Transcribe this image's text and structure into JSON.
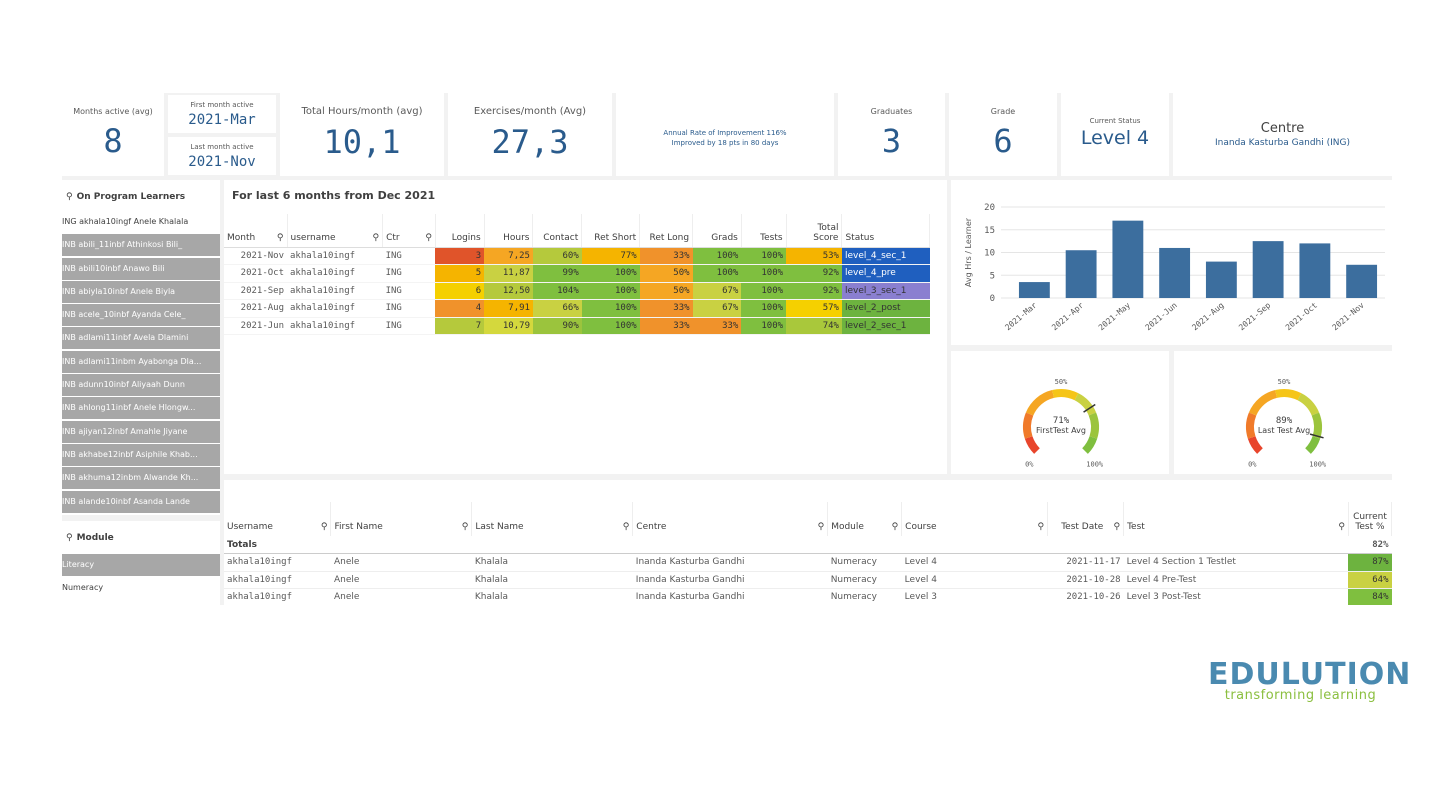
{
  "kpis": {
    "months_active": {
      "label": "Months active (avg)",
      "value": "8"
    },
    "first_month": {
      "label": "First month active",
      "value": "2021-Mar"
    },
    "last_month": {
      "label": "Last month active",
      "value": "2021-Nov"
    },
    "total_hours": {
      "label": "Total Hours/month (avg)",
      "value": "10,1"
    },
    "exercises": {
      "label": "Exercises/month (Avg)",
      "value": "27,3"
    },
    "improvement": {
      "line1": "Annual Rate of Improvement 116%",
      "line2": "Improved by 18 pts in 80 days"
    },
    "graduates": {
      "label": "Graduates",
      "value": "3"
    },
    "grade": {
      "label": "Grade",
      "value": "6"
    },
    "status": {
      "label": "Current Status",
      "value": "Level 4"
    },
    "centre": {
      "label": "Centre",
      "value": "Inanda Kasturba Gandhi (ING)"
    }
  },
  "learners": {
    "title": "On Program Learners",
    "items": [
      {
        "label": "ING akhala10ingf Anele Khalala",
        "selected": false
      },
      {
        "label": "INB abili_11inbf Athinkosi Bili_",
        "selected": true
      },
      {
        "label": "INB abili10inbf Anawo Bili",
        "selected": true
      },
      {
        "label": "INB abiyla10inbf Anele Biyla",
        "selected": true
      },
      {
        "label": "INB acele_10inbf Ayanda Cele_",
        "selected": true
      },
      {
        "label": "INB adlami11inbf Avela Dlamini",
        "selected": true
      },
      {
        "label": "INB adlami11inbm Ayabonga Dla...",
        "selected": true
      },
      {
        "label": "INB adunn10inbf Aliyaah Dunn",
        "selected": true
      },
      {
        "label": "INB ahlong11inbf Anele Hlongw...",
        "selected": true
      },
      {
        "label": "INB ajiyan12inbf Amahle Jiyane",
        "selected": true
      },
      {
        "label": "INB akhabe12inbf Asiphile Khab...",
        "selected": true
      },
      {
        "label": "INB akhuma12inbm Alwande Kh...",
        "selected": true
      },
      {
        "label": "INB alande10inbf Asanda Lande",
        "selected": true
      }
    ]
  },
  "module": {
    "title": "Module",
    "items": [
      {
        "label": "Literacy",
        "selected": true
      },
      {
        "label": "Numeracy",
        "selected": false
      }
    ]
  },
  "monthly": {
    "title": "For last 6 months from Dec 2021",
    "headers": [
      "Month",
      "username",
      "Ctr",
      "Logins",
      "Hours",
      "Contact",
      "Ret Short",
      "Ret Long",
      "Grads",
      "Tests",
      "Total Score",
      "Status"
    ],
    "rows": [
      {
        "month": "2021-Nov",
        "username": "akhala10ingf",
        "ctr": "ING",
        "logins": "3",
        "hours": "7,25",
        "contact": "60%",
        "ret_short": "77%",
        "ret_long": "33%",
        "grads": "100%",
        "tests": "100%",
        "total": "53%",
        "status": "level_4_sec_1",
        "colors": {
          "logins": "#e0542a",
          "hours": "#f5a623",
          "contact": "#b5c93c",
          "ret_short": "#f5b400",
          "ret_long": "#f0922b",
          "grads": "#7fbf3f",
          "tests": "#7fbf3f",
          "total": "#f5b400",
          "status": "#1f5fbf"
        }
      },
      {
        "month": "2021-Oct",
        "username": "akhala10ingf",
        "ctr": "ING",
        "logins": "5",
        "hours": "11,87",
        "contact": "99%",
        "ret_short": "100%",
        "ret_long": "50%",
        "grads": "100%",
        "tests": "100%",
        "total": "92%",
        "status": "level_4_pre",
        "colors": {
          "logins": "#f5b400",
          "hours": "#c9d142",
          "contact": "#7fbf3f",
          "ret_short": "#7fbf3f",
          "ret_long": "#f5a623",
          "grads": "#7fbf3f",
          "tests": "#7fbf3f",
          "total": "#7fbf3f",
          "status": "#1f5fbf"
        }
      },
      {
        "month": "2021-Sep",
        "username": "akhala10ingf",
        "ctr": "ING",
        "logins": "6",
        "hours": "12,50",
        "contact": "104%",
        "ret_short": "100%",
        "ret_long": "50%",
        "grads": "67%",
        "tests": "100%",
        "total": "92%",
        "status": "level_3_sec_1",
        "colors": {
          "logins": "#f5d000",
          "hours": "#b5c93c",
          "contact": "#7fbf3f",
          "ret_short": "#7fbf3f",
          "ret_long": "#f5a623",
          "grads": "#c9d142",
          "tests": "#7fbf3f",
          "total": "#7fbf3f",
          "status": "#8a7fd0"
        }
      },
      {
        "month": "2021-Aug",
        "username": "akhala10ingf",
        "ctr": "ING",
        "logins": "4",
        "hours": "7,91",
        "contact": "66%",
        "ret_short": "100%",
        "ret_long": "33%",
        "grads": "67%",
        "tests": "100%",
        "total": "57%",
        "status": "level_2_post",
        "colors": {
          "logins": "#f0922b",
          "hours": "#f5b400",
          "contact": "#c9d142",
          "ret_short": "#7fbf3f",
          "ret_long": "#f0922b",
          "grads": "#c9d142",
          "tests": "#7fbf3f",
          "total": "#f5d000",
          "status": "#6db33f"
        }
      },
      {
        "month": "2021-Jun",
        "username": "akhala10ingf",
        "ctr": "ING",
        "logins": "7",
        "hours": "10,79",
        "contact": "90%",
        "ret_short": "100%",
        "ret_long": "33%",
        "grads": "33%",
        "tests": "100%",
        "total": "74%",
        "status": "level_2_sec_1",
        "colors": {
          "logins": "#b5c93c",
          "hours": "#d4d83d",
          "contact": "#9bc43d",
          "ret_short": "#7fbf3f",
          "ret_long": "#f0922b",
          "grads": "#f0922b",
          "tests": "#7fbf3f",
          "total": "#a9c83b",
          "status": "#6db33f"
        }
      }
    ]
  },
  "chart_data": [
    {
      "type": "bar",
      "title": "",
      "xlabel": "",
      "ylabel": "Avg Hrs / Learner",
      "categories": [
        "2021-Mar",
        "2021-Apr",
        "2021-May",
        "2021-Jun",
        "2021-Aug",
        "2021-Sep",
        "2021-Oct",
        "2021-Nov"
      ],
      "values": [
        3.5,
        10.5,
        17,
        11,
        8,
        12.5,
        12,
        7.3
      ],
      "ylim": [
        0,
        20
      ],
      "yticks": [
        0,
        5,
        10,
        15,
        20
      ],
      "color": "#3c6e9e"
    },
    {
      "type": "gauge",
      "label": "FirstTest Avg",
      "value": 71,
      "value_label": "71%",
      "min_label": "0%",
      "mid_label": "50%",
      "max_label": "100%"
    },
    {
      "type": "gauge",
      "label": "Last Test Avg",
      "value": 89,
      "value_label": "89%",
      "min_label": "0%",
      "mid_label": "50%",
      "max_label": "100%"
    }
  ],
  "tests": {
    "headers": [
      "Username",
      "First Name",
      "Last Name",
      "Centre",
      "Module",
      "Course",
      "Test Date",
      "Test",
      "Current Test %"
    ],
    "totals_label": "Totals",
    "totals_value": "82%",
    "rows": [
      {
        "username": "akhala10ingf",
        "first": "Anele",
        "last": "Khalala",
        "centre": "Inanda Kasturba Gandhi",
        "module": "Numeracy",
        "course": "Level 4",
        "date": "2021-11-17",
        "test": "Level 4 Section 1 Testlet",
        "pct": "87%",
        "color": "#6db33f"
      },
      {
        "username": "akhala10ingf",
        "first": "Anele",
        "last": "Khalala",
        "centre": "Inanda Kasturba Gandhi",
        "module": "Numeracy",
        "course": "Level 4",
        "date": "2021-10-28",
        "test": "Level 4 Pre-Test",
        "pct": "64%",
        "color": "#c9d142"
      },
      {
        "username": "akhala10ingf",
        "first": "Anele",
        "last": "Khalala",
        "centre": "Inanda Kasturba Gandhi",
        "module": "Numeracy",
        "course": "Level 3",
        "date": "2021-10-26",
        "test": "Level 3 Post-Test",
        "pct": "84%",
        "color": "#7fbf3f"
      }
    ]
  },
  "brand": {
    "name": "EDULUTION",
    "tagline": "transforming learning",
    "color_main": "#4a8ab0",
    "color_accent": "#8bbf3f"
  }
}
